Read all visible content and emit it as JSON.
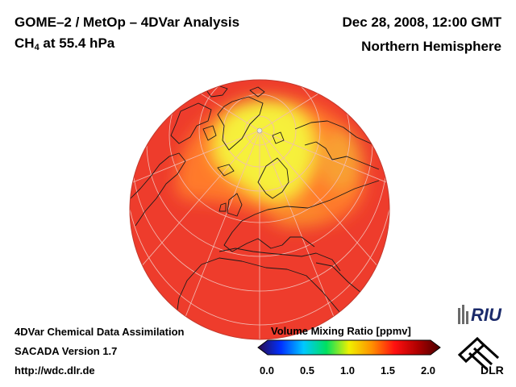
{
  "header": {
    "title_line1": "GOME–2 / MetOp – 4DVar Analysis",
    "species": "CH",
    "species_subscript": "4",
    "level": " at 55.4 hPa",
    "date": "Dec 28, 2008, 12:00 GMT",
    "region": "Northern Hemisphere"
  },
  "footer": {
    "line1": "4DVar Chemical Data Assimilation",
    "line2": "SACADA Version 1.7",
    "line3": "http://wdc.dlr.de"
  },
  "colorbar": {
    "title": "Volume Mixing Ratio [ppmv]",
    "ticks": [
      "0.0",
      "0.5",
      "1.0",
      "1.5",
      "2.0"
    ],
    "range": [
      0.0,
      2.0
    ],
    "colors": [
      "#2a0a4a",
      "#0030ff",
      "#00c8ff",
      "#00e060",
      "#f0f000",
      "#ff9000",
      "#ff1010",
      "#b00000",
      "#4a0000"
    ]
  },
  "logos": {
    "riu": "RIU",
    "dlr": "DLR"
  },
  "map": {
    "projection": "orthographic",
    "center": "North Pole",
    "field_colors": {
      "background": "#ee3c2c",
      "low_band": "#ff7a2a",
      "high": "#f6f03a"
    }
  }
}
